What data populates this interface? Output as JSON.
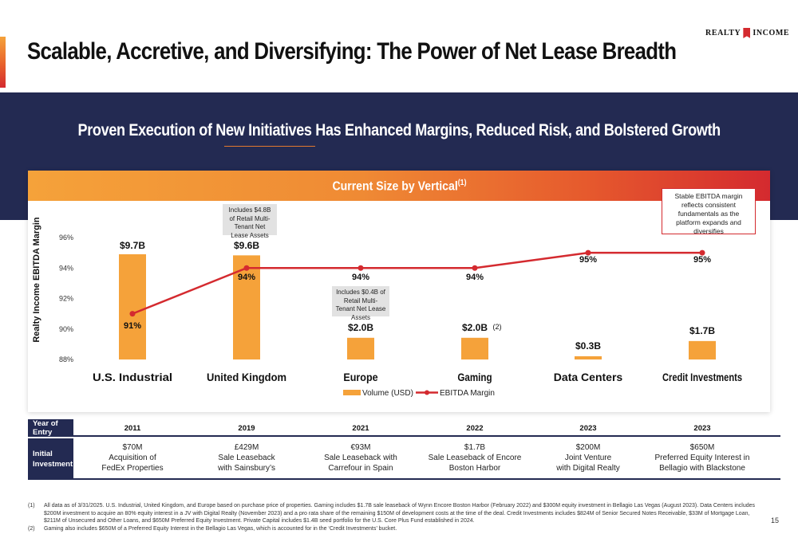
{
  "slide": {
    "title": "Scalable, Accretive, and Diversifying: The Power of Net Lease Breadth",
    "logo_left": "REALTY",
    "logo_right": "INCOME",
    "page_number": "15"
  },
  "band": {
    "heading": "Proven Execution of New Initiatives Has Enhanced Margins, Reduced Risk, and Bolstered Growth"
  },
  "chart_header": {
    "title": "Current Size by Vertical",
    "superscript": "(1)"
  },
  "callouts": {
    "uk_note": "Includes $4.8B of Retail Multi-Tenant Net Lease Assets",
    "europe_note": "Includes $0.4B of Retail Multi-Tenant Net Lease Assets",
    "stable_note": "Stable EBITDA margin reflects consistent fundamentals as the platform expands and diversifies"
  },
  "chart_data": {
    "type": "bar",
    "categories": [
      "U.S. Industrial",
      "United Kingdom",
      "Europe",
      "Gaming",
      "Data Centers",
      "Credit Investments"
    ],
    "series": [
      {
        "name": "Volume (USD)",
        "kind": "bar",
        "values": [
          9.7,
          9.6,
          2.0,
          2.0,
          0.3,
          1.7
        ],
        "labels": [
          "$9.7B",
          "$9.6B",
          "$2.0B",
          "$2.0B",
          "$0.3B",
          "$1.7B"
        ],
        "label_notes": [
          "",
          "",
          "",
          "(2)",
          "",
          ""
        ],
        "color": "#f5a23a"
      },
      {
        "name": "EBITDA Margin",
        "kind": "line",
        "values": [
          91,
          94,
          94,
          94,
          95,
          95
        ],
        "labels": [
          "91%",
          "94%",
          "94%",
          "94%",
          "95%",
          "95%"
        ],
        "color": "#d42a2f"
      }
    ],
    "ylabel": "Realty Income EBITDA Margin",
    "y_ticks": [
      "88%",
      "90%",
      "92%",
      "94%",
      "96%"
    ],
    "ylim": [
      88,
      96
    ],
    "legend_position": "bottom-center"
  },
  "table": {
    "year_header": "Year of Entry",
    "investment_header": "Initial Investment",
    "years": [
      "2011",
      "2019",
      "2021",
      "2022",
      "2023",
      "2023"
    ],
    "investments": [
      [
        "$70M",
        "Acquisition of",
        "FedEx Properties"
      ],
      [
        "£429M",
        "Sale Leaseback",
        "with Sainsbury’s"
      ],
      [
        "€93M",
        "Sale Leaseback with",
        "Carrefour in Spain"
      ],
      [
        "$1.7B",
        "Sale Leaseback of Encore",
        "Boston Harbor"
      ],
      [
        "$200M",
        "Joint Venture",
        "with Digital Realty"
      ],
      [
        "$650M",
        "Preferred Equity Interest in",
        "Bellagio with Blackstone"
      ]
    ]
  },
  "footnotes": [
    {
      "num": "(1)",
      "text": "All data as of 3/31/2025. U.S. Industrial, United Kingdom, and Europe based on purchase price of properties. Gaming includes $1.7B sale leaseback of Wynn Encore Boston Harbor (February 2022) and $300M equity investment in Bellagio Las Vegas (August 2023). Data Centers includes $200M investment to acquire an 80% equity interest in a JV with Digital Realty (November 2023) and a pro rata share of the remaining $150M of development costs at the time of the deal. Credit Investments includes $824M of Senior Secured Notes Receivable, $33M of Mortgage Loan, $211M of Unsecured and Other Loans, and $650M Preferred Equity Investment. Private Capital includes $1.4B seed portfolio for the U.S. Core Plus Fund established in 2024."
    },
    {
      "num": "(2)",
      "text": "Gaming also includes $650M of a Preferred Equity Interest in the Bellagio Las Vegas, which is accounted for in the ‘Credit Investments’ bucket."
    }
  ]
}
